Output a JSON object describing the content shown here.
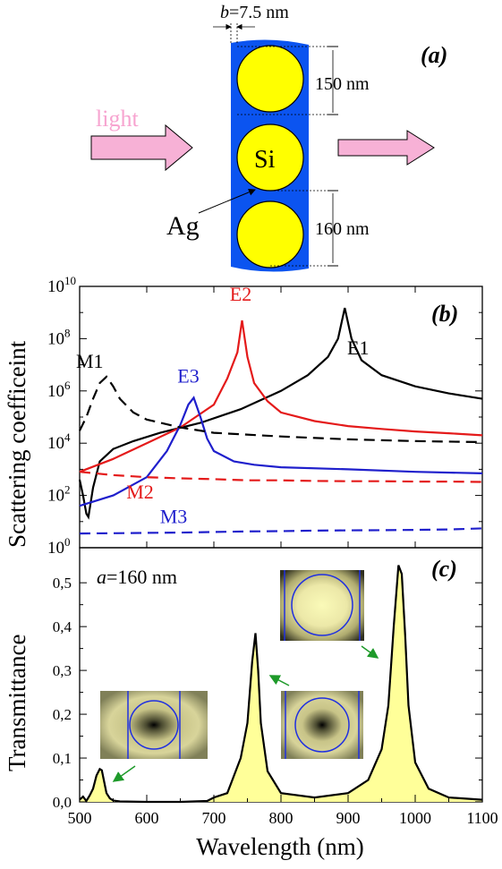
{
  "schematic": {
    "panel_label": "(a)",
    "b_label": "b",
    "b_value": "=7.5 nm",
    "dim_top": "150 nm",
    "dim_bottom": "160 nm",
    "light_label": "light",
    "si_label": "Si",
    "ag_label": "Ag",
    "colors": {
      "metal": "#0b54f0",
      "sphere": "#ffff00",
      "arrow": "#f7b1d6"
    }
  },
  "chart_data": [
    {
      "type": "line",
      "panel_label": "(b)",
      "ylabel": "Scattering coefficeint",
      "yscale": "log",
      "xlim": [
        500,
        1100
      ],
      "ylim": [
        1,
        10000000000
      ],
      "ytick_exponents": [
        "0",
        "2",
        "4",
        "6",
        "8",
        "10"
      ],
      "series": [
        {
          "name": "E1",
          "color": "#000000",
          "dash": false,
          "x": [
            500,
            505,
            510,
            513,
            520,
            530,
            550,
            580,
            620,
            680,
            740,
            800,
            840,
            870,
            885,
            895,
            905,
            920,
            950,
            1000,
            1050,
            1100
          ],
          "y": [
            400,
            100,
            20,
            15,
            200,
            2000,
            6000,
            12000,
            25000,
            60000,
            200000,
            1000000,
            4000000,
            20000000,
            100000000,
            1500000000,
            100000000,
            15000000,
            4000000,
            1500000,
            800000,
            500000
          ]
        },
        {
          "name": "E2",
          "color": "#e41a1a",
          "dash": false,
          "x": [
            500,
            550,
            600,
            650,
            700,
            720,
            735,
            742,
            750,
            760,
            780,
            800,
            850,
            900,
            950,
            1000,
            1050,
            1100
          ],
          "y": [
            800,
            2500,
            10000,
            40000,
            300000,
            3000000,
            30000000,
            500000000,
            20000000,
            2000000,
            400000,
            150000,
            70000,
            45000,
            35000,
            28000,
            24000,
            20000
          ]
        },
        {
          "name": "E3",
          "color": "#1f1fcc",
          "dash": false,
          "x": [
            500,
            550,
            600,
            630,
            650,
            662,
            670,
            680,
            690,
            700,
            730,
            760,
            800,
            900,
            1000,
            1100
          ],
          "y": [
            40,
            100,
            500,
            5000,
            50000,
            300000,
            550000,
            100000,
            15000,
            5000,
            2000,
            1500,
            1200,
            1000,
            800,
            700
          ]
        },
        {
          "name": "M1",
          "color": "#000000",
          "dash": true,
          "x": [
            500,
            510,
            520,
            530,
            540,
            550,
            560,
            580,
            600,
            650,
            700,
            800,
            900,
            1000,
            1100
          ],
          "y": [
            30000,
            100000,
            500000,
            2000000,
            3500000,
            1500000,
            500000,
            150000,
            80000,
            40000,
            25000,
            18000,
            14000,
            12000,
            11000
          ]
        },
        {
          "name": "M2",
          "color": "#e41a1a",
          "dash": true,
          "x": [
            500,
            550,
            600,
            650,
            700,
            750,
            800,
            850,
            900,
            950,
            1000,
            1050,
            1100
          ],
          "y": [
            800,
            600,
            500,
            450,
            420,
            380,
            380,
            360,
            350,
            350,
            340,
            340,
            330
          ]
        },
        {
          "name": "M3",
          "color": "#1f1fcc",
          "dash": true,
          "x": [
            500,
            550,
            600,
            650,
            700,
            750,
            800,
            850,
            900,
            950,
            1000,
            1050,
            1100
          ],
          "y": [
            3.5,
            3.6,
            3.7,
            3.8,
            4,
            4.2,
            4.3,
            4.5,
            4.6,
            4.7,
            4.8,
            5,
            5.5
          ]
        }
      ]
    },
    {
      "type": "area",
      "panel_label": "(c)",
      "annotation_italic": "a",
      "annotation_text": "=160 nm",
      "xlabel": "Wavelength (nm)",
      "ylabel": "Transmittance",
      "xlim": [
        500,
        1100
      ],
      "ylim": [
        0,
        0.58
      ],
      "xticks": [
        500,
        600,
        700,
        800,
        900,
        1000,
        1100
      ],
      "yticks": [
        "0,0",
        "0,1",
        "0,2",
        "0,3",
        "0,4",
        "0,5"
      ],
      "ytick_values": [
        0,
        0.1,
        0.2,
        0.3,
        0.4,
        0.5
      ],
      "fill_color": "#ffff99",
      "series": [
        {
          "x": [
            500,
            505,
            510,
            515,
            520,
            525,
            530,
            533,
            536,
            540,
            545,
            550,
            560,
            600,
            650,
            690,
            700,
            720,
            725,
            730,
            740,
            750,
            757,
            762,
            766,
            770,
            780,
            800,
            850,
            900,
            930,
            950,
            960,
            968,
            975,
            980,
            985,
            990,
            1000,
            1020,
            1050,
            1100
          ],
          "y": [
            0.005,
            0.012,
            0.002,
            0.015,
            0.03,
            0.06,
            0.075,
            0.072,
            0.05,
            0.02,
            0.008,
            0.003,
            0.001,
            0.0,
            0.0,
            0.002,
            0.01,
            0.02,
            0.04,
            0.06,
            0.1,
            0.18,
            0.32,
            0.385,
            0.3,
            0.18,
            0.07,
            0.02,
            0.01,
            0.02,
            0.05,
            0.12,
            0.22,
            0.4,
            0.54,
            0.52,
            0.38,
            0.22,
            0.09,
            0.03,
            0.01,
            0.005
          ]
        }
      ]
    }
  ]
}
